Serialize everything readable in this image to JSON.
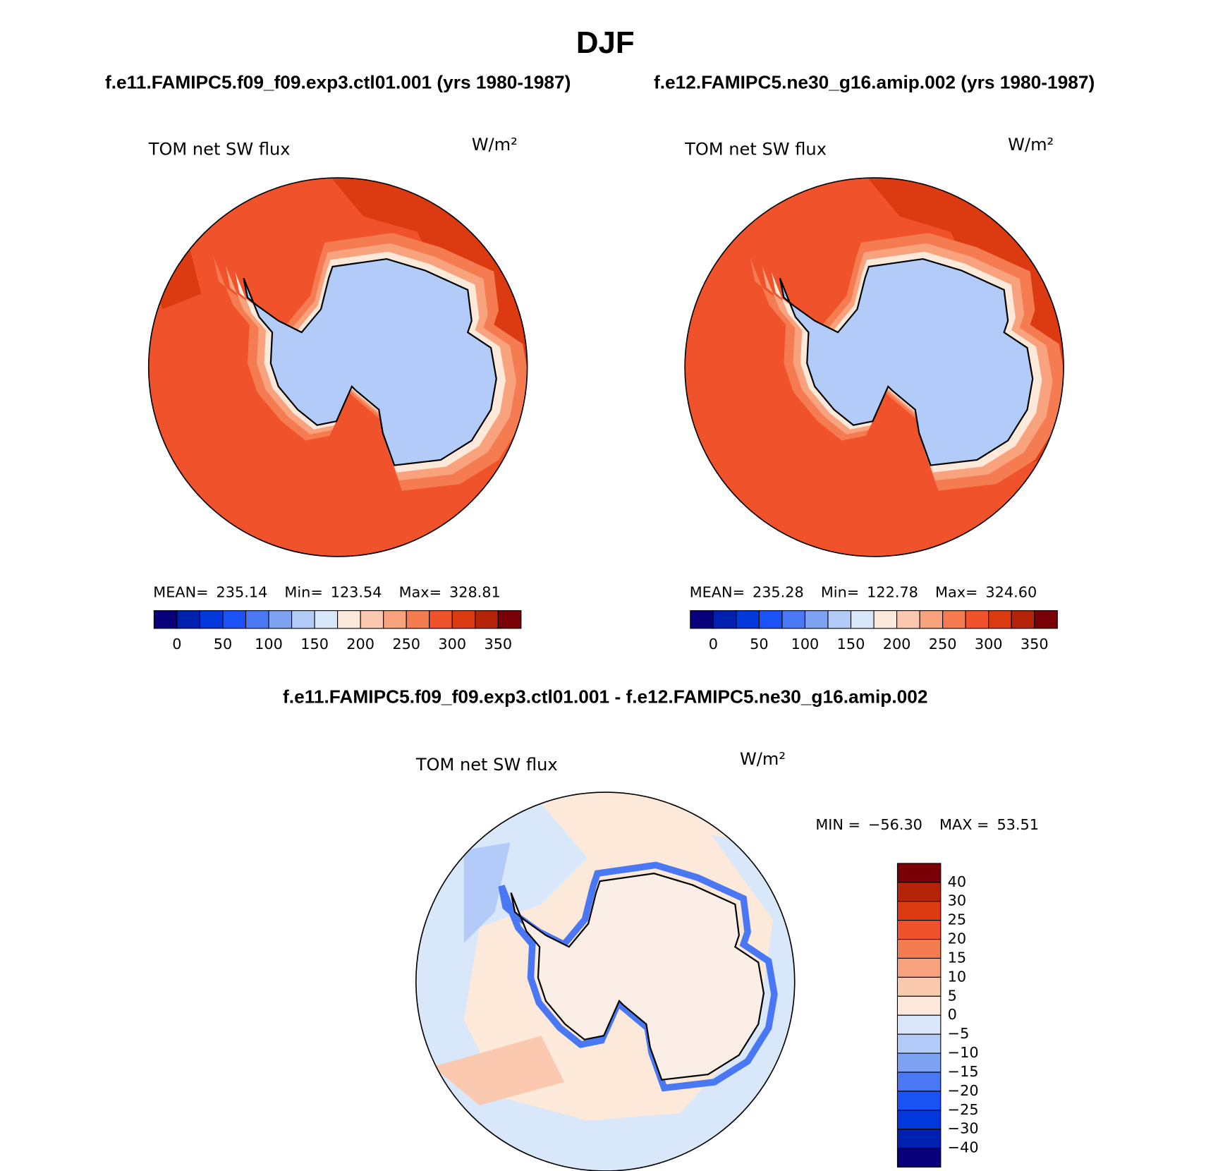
{
  "title": "DJF",
  "panels": [
    {
      "subtitle": "f.e11.FAMIPC5.f09_f09.exp3.ctl01.001 (yrs 1980-1987)",
      "variable": "TOM net SW flux",
      "units": "W/m²",
      "stats": [
        {
          "name": "MEAN=",
          "value": "235.14"
        },
        {
          "name": "Min=",
          "value": "123.54"
        },
        {
          "name": "Max=",
          "value": "328.81"
        }
      ],
      "colorbar": {
        "colors": [
          "#07007a",
          "#0020b0",
          "#0038dc",
          "#1a52f5",
          "#4a78f5",
          "#7ea2f2",
          "#b2cbf8",
          "#d8e7fa",
          "#fde9d9",
          "#fbc9b0",
          "#f9a27e",
          "#f57b50",
          "#f0522b",
          "#dc3a10",
          "#b52408",
          "#7a0008"
        ],
        "lim": [
          -25,
          375
        ],
        "ticks": [
          0,
          50,
          100,
          150,
          200,
          250,
          300,
          350
        ]
      }
    },
    {
      "subtitle": "f.e12.FAMIPC5.ne30_g16.amip.002 (yrs 1980-1987)",
      "variable": "TOM net SW flux",
      "units": "W/m²",
      "stats": [
        {
          "name": "MEAN=",
          "value": "235.28"
        },
        {
          "name": "Min=",
          "value": "122.78"
        },
        {
          "name": "Max=",
          "value": "324.60"
        }
      ],
      "colorbar": {
        "colors": [
          "#07007a",
          "#0020b0",
          "#0038dc",
          "#1a52f5",
          "#4a78f5",
          "#7ea2f2",
          "#b2cbf8",
          "#d8e7fa",
          "#fde9d9",
          "#fbc9b0",
          "#f9a27e",
          "#f57b50",
          "#f0522b",
          "#dc3a10",
          "#b52408",
          "#7a0008"
        ],
        "lim": [
          -25,
          375
        ],
        "ticks": [
          0,
          50,
          100,
          150,
          200,
          250,
          300,
          350
        ]
      }
    }
  ],
  "difference": {
    "title": "f.e11.FAMIPC5.f09_f09.exp3.ctl01.001 - f.e12.FAMIPC5.ne30_g16.amip.002",
    "variable": "TOM net SW flux",
    "units": "W/m²",
    "stats": [
      {
        "name": "MIN =",
        "value": "−56.30"
      },
      {
        "name": "MAX =",
        "value": "53.51"
      }
    ],
    "colorbar": {
      "colors": [
        "#7a0008",
        "#b52408",
        "#dc3a10",
        "#f0522b",
        "#f57b50",
        "#f9a27e",
        "#fbc9b0",
        "#fde9d9",
        "#d8e7fa",
        "#b2cbf8",
        "#7ea2f2",
        "#4a78f5",
        "#1a52f5",
        "#0038dc",
        "#0020b0",
        "#07007a"
      ],
      "ticks": [
        40,
        30,
        25,
        20,
        15,
        10,
        5,
        0,
        {
          "value": -5,
          "label": "−5"
        },
        {
          "value": -10,
          "label": "−10"
        },
        {
          "value": -15,
          "label": "−15"
        },
        {
          "value": -20,
          "label": "−20"
        },
        {
          "value": -25,
          "label": "−25"
        },
        {
          "value": -30,
          "label": "−30"
        },
        {
          "value": -40,
          "label": "−40"
        }
      ]
    }
  }
}
